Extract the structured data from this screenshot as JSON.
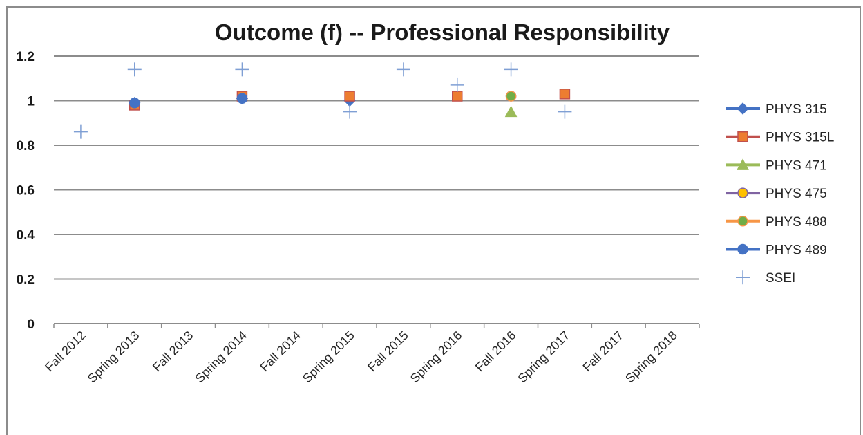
{
  "chart_data": {
    "type": "scatter",
    "title": "Outcome (f) -- Professional Responsibility",
    "xlabel": "",
    "ylabel": "",
    "categories": [
      "Fall 2012",
      "Spring 2013",
      "Fall 2013",
      "Spring 2014",
      "Fall 2014",
      "Spring 2015",
      "Fall 2015",
      "Spring 2016",
      "Fall 2016",
      "Spring 2017",
      "Fall 2017",
      "Spring 2018"
    ],
    "ylim": [
      0,
      1.2
    ],
    "yticks": [
      0,
      0.2,
      0.4,
      0.6,
      0.8,
      1,
      1.2
    ],
    "ytick_labels": [
      "0",
      "0.2",
      "0.4",
      "0.6",
      "0.8",
      "1",
      "1.2"
    ],
    "grid": true,
    "legend_position": "right",
    "series": [
      {
        "name": "PHYS 315",
        "marker": "diamond",
        "color": "#4472c4",
        "values": [
          null,
          0.99,
          null,
          1.01,
          null,
          1.0,
          null,
          null,
          null,
          null,
          null,
          null
        ]
      },
      {
        "name": "PHYS 315L",
        "marker": "square",
        "color": "#ed7d31",
        "border": "#c0504d",
        "values": [
          null,
          0.98,
          null,
          1.02,
          null,
          1.02,
          null,
          1.02,
          null,
          1.03,
          null,
          null
        ]
      },
      {
        "name": "PHYS 471",
        "marker": "triangle",
        "color": "#9bbb59",
        "values": [
          null,
          null,
          null,
          null,
          null,
          null,
          null,
          null,
          0.95,
          null,
          null,
          null
        ]
      },
      {
        "name": "PHYS 475",
        "marker": "circle",
        "color": "#ffc000",
        "border": "#8064a2",
        "values": [
          null,
          null,
          null,
          null,
          null,
          null,
          null,
          null,
          1.02,
          null,
          null,
          null
        ]
      },
      {
        "name": "PHYS 488",
        "marker": "circle",
        "color": "#70ad47",
        "border": "#f79646",
        "values": [
          null,
          null,
          null,
          null,
          null,
          null,
          null,
          null,
          1.02,
          null,
          null,
          null
        ]
      },
      {
        "name": "PHYS 489",
        "marker": "circle",
        "color": "#4472c4",
        "values": [
          null,
          0.99,
          null,
          1.01,
          null,
          null,
          null,
          null,
          null,
          null,
          null,
          null
        ]
      },
      {
        "name": "SSEI",
        "marker": "plus",
        "color": "#7f9fd4",
        "values": [
          0.86,
          1.14,
          null,
          1.14,
          null,
          0.95,
          1.14,
          1.07,
          1.14,
          0.95,
          null,
          null
        ]
      }
    ]
  }
}
